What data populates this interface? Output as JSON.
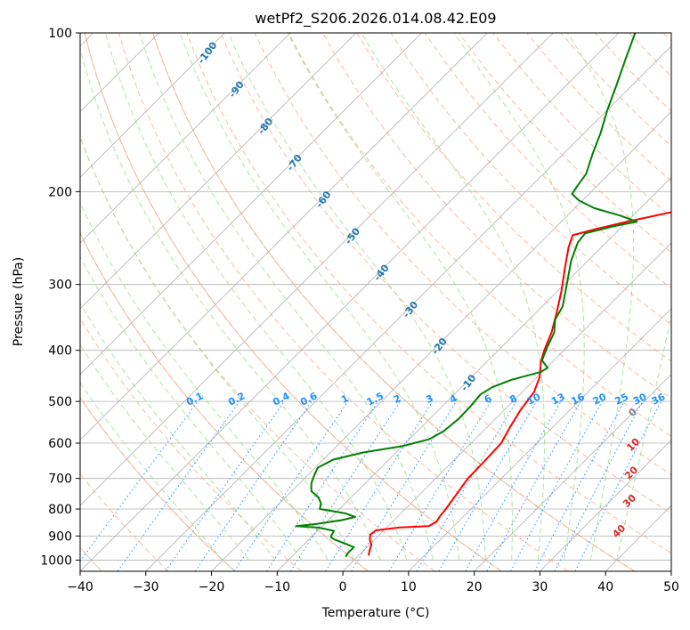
{
  "chart_data": {
    "type": "line",
    "subtype": "skew-T log-P diagram",
    "title": "wetPf2_S206.2026.014.08.42.E09",
    "xlabel": "Temperature (°C)",
    "ylabel": "Pressure (hPa)",
    "xlim": [
      -40,
      50
    ],
    "ylim": [
      1050,
      100
    ],
    "x_ticks": [
      -40,
      -30,
      -20,
      -10,
      0,
      10,
      20,
      30,
      40,
      50
    ],
    "x_tick_labels": [
      "−40",
      "−30",
      "−20",
      "−10",
      "0",
      "10",
      "20",
      "30",
      "40",
      "50"
    ],
    "y_ticks": [
      100,
      200,
      300,
      400,
      500,
      600,
      700,
      800,
      900,
      1000
    ],
    "y_tick_labels": [
      "100",
      "200",
      "300",
      "400",
      "500",
      "600",
      "700",
      "800",
      "900",
      "1000"
    ],
    "grid": true,
    "series": [
      {
        "name": "Temperature",
        "color": "#ff0000",
        "points": [
          {
            "p": 980,
            "t": 1.5
          },
          {
            "p": 955,
            "t": 0.8
          },
          {
            "p": 935,
            "t": 0.3
          },
          {
            "p": 915,
            "t": -0.7
          },
          {
            "p": 895,
            "t": -1.4
          },
          {
            "p": 878,
            "t": -1.2
          },
          {
            "p": 867,
            "t": 2.0
          },
          {
            "p": 862,
            "t": 6.2
          },
          {
            "p": 845,
            "t": 6.7
          },
          {
            "p": 825,
            "t": 6.4
          },
          {
            "p": 800,
            "t": 6.2
          },
          {
            "p": 760,
            "t": 5.7
          },
          {
            "p": 700,
            "t": 4.9
          },
          {
            "p": 650,
            "t": 4.8
          },
          {
            "p": 600,
            "t": 4.6
          },
          {
            "p": 560,
            "t": 3.5
          },
          {
            "p": 520,
            "t": 2.5
          },
          {
            "p": 480,
            "t": 1.8
          },
          {
            "p": 450,
            "t": 0.4
          },
          {
            "p": 420,
            "t": -1.8
          },
          {
            "p": 400,
            "t": -3.0
          },
          {
            "p": 370,
            "t": -4.6
          },
          {
            "p": 340,
            "t": -6.8
          },
          {
            "p": 310,
            "t": -9.3
          },
          {
            "p": 280,
            "t": -12.3
          },
          {
            "p": 255,
            "t": -15.0
          },
          {
            "p": 242,
            "t": -16.2
          },
          {
            "p": 236,
            "t": -13.8
          },
          {
            "p": 228,
            "t": -10.0
          },
          {
            "p": 218,
            "t": -4.2
          },
          {
            "p": 210,
            "t": 2.0
          },
          {
            "p": 200,
            "t": 6.2
          },
          {
            "p": 185,
            "t": 10.0
          },
          {
            "p": 170,
            "t": 15.2
          },
          {
            "p": 155,
            "t": 20.8
          },
          {
            "p": 140,
            "t": 26.0
          },
          {
            "p": 128,
            "t": 29.2
          },
          {
            "p": 118,
            "t": 32.0
          },
          {
            "p": 108,
            "t": 35.0
          },
          {
            "p": 100,
            "t": 37.5
          }
        ]
      },
      {
        "name": "Dewpoint",
        "color": "#008000",
        "points": [
          {
            "p": 985,
            "t": -1.8
          },
          {
            "p": 970,
            "t": -2.0
          },
          {
            "p": 945,
            "t": -2.0
          },
          {
            "p": 928,
            "t": -4.2
          },
          {
            "p": 915,
            "t": -6.0
          },
          {
            "p": 905,
            "t": -7.0
          },
          {
            "p": 898,
            "t": -7.2
          },
          {
            "p": 880,
            "t": -7.5
          },
          {
            "p": 868,
            "t": -10.3
          },
          {
            "p": 862,
            "t": -14.0
          },
          {
            "p": 855,
            "t": -11.5
          },
          {
            "p": 840,
            "t": -8.0
          },
          {
            "p": 828,
            "t": -6.4
          },
          {
            "p": 815,
            "t": -8.5
          },
          {
            "p": 800,
            "t": -13.0
          },
          {
            "p": 780,
            "t": -13.7
          },
          {
            "p": 760,
            "t": -15.0
          },
          {
            "p": 740,
            "t": -17.0
          },
          {
            "p": 715,
            "t": -18.2
          },
          {
            "p": 690,
            "t": -19.0
          },
          {
            "p": 668,
            "t": -19.6
          },
          {
            "p": 645,
            "t": -18.5
          },
          {
            "p": 625,
            "t": -15.0
          },
          {
            "p": 608,
            "t": -10.0
          },
          {
            "p": 590,
            "t": -7.0
          },
          {
            "p": 570,
            "t": -6.0
          },
          {
            "p": 540,
            "t": -5.6
          },
          {
            "p": 510,
            "t": -5.7
          },
          {
            "p": 485,
            "t": -6.0
          },
          {
            "p": 470,
            "t": -5.3
          },
          {
            "p": 455,
            "t": -3.5
          },
          {
            "p": 440,
            "t": -0.3
          },
          {
            "p": 432,
            "t": 0.2
          },
          {
            "p": 418,
            "t": -1.8
          },
          {
            "p": 395,
            "t": -3.0
          },
          {
            "p": 370,
            "t": -4.2
          },
          {
            "p": 350,
            "t": -6.0
          },
          {
            "p": 330,
            "t": -6.9
          },
          {
            "p": 300,
            "t": -9.6
          },
          {
            "p": 270,
            "t": -12.6
          },
          {
            "p": 250,
            "t": -14.3
          },
          {
            "p": 240,
            "t": -14.6
          },
          {
            "p": 233,
            "t": -11.5
          },
          {
            "p": 228,
            "t": -8.5
          },
          {
            "p": 222,
            "t": -12.0
          },
          {
            "p": 215,
            "t": -17.0
          },
          {
            "p": 208,
            "t": -20.5
          },
          {
            "p": 202,
            "t": -22.6
          },
          {
            "p": 195,
            "t": -23.0
          },
          {
            "p": 185,
            "t": -23.5
          },
          {
            "p": 170,
            "t": -25.5
          },
          {
            "p": 155,
            "t": -27.5
          },
          {
            "p": 140,
            "t": -30.0
          },
          {
            "p": 125,
            "t": -32.5
          },
          {
            "p": 112,
            "t": -35.0
          },
          {
            "p": 100,
            "t": -37.5
          }
        ]
      }
    ],
    "dry_adiabat_labels": [
      "-100",
      "-90",
      "-80",
      "-70",
      "-60",
      "-50",
      "-40",
      "-30",
      "-20",
      "-10"
    ],
    "mixing_ratio_labels": [
      "0.1",
      "0.2",
      "0.4",
      "0.6",
      "1",
      "1.5",
      "2",
      "3",
      "4",
      "6",
      "8",
      "10",
      "13",
      "16",
      "20",
      "25",
      "30",
      "36"
    ],
    "moist_adiabat_labels": [
      "0",
      "10",
      "20",
      "30",
      "40"
    ],
    "colors": {
      "isobar": "#b0b0b0",
      "isotherm": "#b0b0b0",
      "dry_adiabat": "#f4a582",
      "moist_adiabat": "#98df8a",
      "mixing_ratio": "#1e90ff",
      "bg_adiabat": "#dcc7aa",
      "temperature": "#ff0000",
      "dewpoint": "#008000"
    }
  }
}
